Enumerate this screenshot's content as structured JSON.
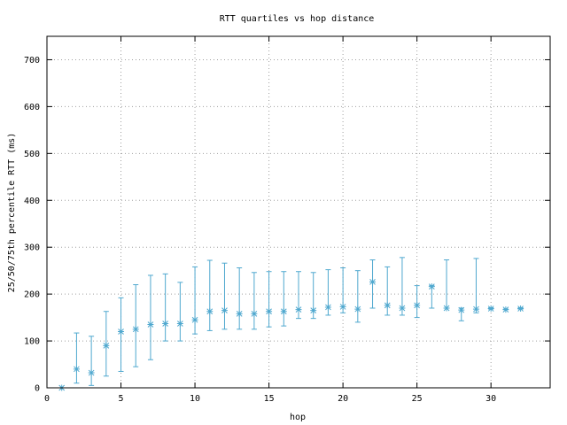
{
  "chart_data": {
    "type": "scatter",
    "title": "RTT quartiles vs hop distance",
    "xlabel": "hop",
    "ylabel": "25/50/75th percentile RTT (ms)",
    "xlim": [
      0,
      34
    ],
    "ylim": [
      0,
      750
    ],
    "xticks": [
      0,
      5,
      10,
      15,
      20,
      25,
      30
    ],
    "yticks": [
      0,
      100,
      200,
      300,
      400,
      500,
      600,
      700
    ],
    "grid": true,
    "color": "#4fa8cf",
    "series": [
      {
        "name": "",
        "marker": "asterisk",
        "points": [
          {
            "x": 1,
            "q25": 0,
            "median": 0,
            "q75": 0
          },
          {
            "x": 2,
            "q25": 10,
            "median": 40,
            "q75": 117
          },
          {
            "x": 3,
            "q25": 5,
            "median": 32,
            "q75": 110
          },
          {
            "x": 4,
            "q25": 25,
            "median": 90,
            "q75": 163
          },
          {
            "x": 5,
            "q25": 35,
            "median": 120,
            "q75": 192
          },
          {
            "x": 6,
            "q25": 45,
            "median": 125,
            "q75": 220
          },
          {
            "x": 7,
            "q25": 60,
            "median": 135,
            "q75": 240
          },
          {
            "x": 8,
            "q25": 100,
            "median": 137,
            "q75": 243
          },
          {
            "x": 9,
            "q25": 100,
            "median": 137,
            "q75": 225
          },
          {
            "x": 10,
            "q25": 115,
            "median": 145,
            "q75": 258
          },
          {
            "x": 11,
            "q25": 122,
            "median": 163,
            "q75": 272
          },
          {
            "x": 12,
            "q25": 125,
            "median": 165,
            "q75": 266
          },
          {
            "x": 13,
            "q25": 125,
            "median": 158,
            "q75": 256
          },
          {
            "x": 14,
            "q25": 125,
            "median": 158,
            "q75": 246
          },
          {
            "x": 15,
            "q25": 130,
            "median": 163,
            "q75": 248
          },
          {
            "x": 16,
            "q25": 132,
            "median": 163,
            "q75": 248
          },
          {
            "x": 17,
            "q25": 148,
            "median": 167,
            "q75": 248
          },
          {
            "x": 18,
            "q25": 148,
            "median": 165,
            "q75": 246
          },
          {
            "x": 19,
            "q25": 155,
            "median": 172,
            "q75": 252
          },
          {
            "x": 20,
            "q25": 160,
            "median": 173,
            "q75": 256
          },
          {
            "x": 21,
            "q25": 140,
            "median": 168,
            "q75": 250
          },
          {
            "x": 22,
            "q25": 170,
            "median": 226,
            "q75": 273
          },
          {
            "x": 23,
            "q25": 155,
            "median": 176,
            "q75": 258
          },
          {
            "x": 24,
            "q25": 155,
            "median": 170,
            "q75": 278
          },
          {
            "x": 25,
            "q25": 150,
            "median": 176,
            "q75": 218
          },
          {
            "x": 26,
            "q25": 170,
            "median": 216,
            "q75": 218
          },
          {
            "x": 27,
            "q25": 170,
            "median": 170,
            "q75": 273
          },
          {
            "x": 28,
            "q25": 143,
            "median": 166,
            "q75": 170
          },
          {
            "x": 29,
            "q25": 160,
            "median": 168,
            "q75": 276
          },
          {
            "x": 30,
            "q25": 168,
            "median": 169,
            "q75": 171
          },
          {
            "x": 31,
            "q25": 167,
            "median": 167,
            "q75": 168
          },
          {
            "x": 32,
            "q25": 168,
            "median": 169,
            "q75": 171
          }
        ]
      }
    ]
  }
}
